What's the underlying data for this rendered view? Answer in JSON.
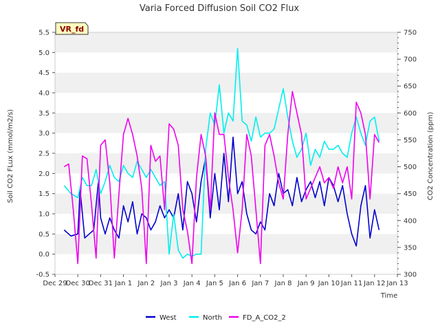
{
  "chart_data": {
    "type": "line",
    "title": "Varia Forced Diffusion Soil CO2 Flux",
    "badge": "VR_fd",
    "xlabel": "Time",
    "ylabel_left": "Soil CO2 FLux (mmol/m2/s)",
    "ylabel_right": "CO2 Concentration (ppm)",
    "xlim": [
      0,
      15
    ],
    "ylim_left": [
      -0.5,
      5.5
    ],
    "ylim_right": [
      300,
      750
    ],
    "x_ticks": [
      "Dec 29",
      "Dec 30",
      "Dec 31",
      "Jan 1",
      "Jan 2",
      "Jan 3",
      "Jan 4",
      "Jan 5",
      "Jan 6",
      "Jan 7",
      "Jan 8",
      "Jan 9",
      "Jan 10",
      "Jan 11",
      "Jan 12",
      "Jan 13"
    ],
    "y_ticks_left": [
      "-0.5",
      "0.0",
      "0.5",
      "1.0",
      "1.5",
      "2.0",
      "2.5",
      "3.0",
      "3.5",
      "4.0",
      "4.5",
      "5.0",
      "5.5"
    ],
    "y_ticks_right": [
      "300",
      "350",
      "400",
      "450",
      "500",
      "550",
      "600",
      "650",
      "700",
      "750"
    ],
    "grid": "horizontal bands",
    "legend_position": "bottom-center",
    "series": [
      {
        "name": "West",
        "axis": "left",
        "color": "#0000cc",
        "x": [
          0.4,
          0.7,
          1.0,
          1.1,
          1.3,
          1.5,
          1.7,
          1.9,
          2.0,
          2.2,
          2.4,
          2.6,
          2.8,
          3.0,
          3.2,
          3.4,
          3.6,
          3.8,
          4.0,
          4.2,
          4.4,
          4.6,
          4.8,
          5.0,
          5.2,
          5.4,
          5.6,
          5.8,
          6.0,
          6.2,
          6.4,
          6.6,
          6.8,
          7.0,
          7.2,
          7.4,
          7.6,
          7.8,
          8.0,
          8.2,
          8.4,
          8.6,
          8.8,
          9.0,
          9.2,
          9.4,
          9.6,
          9.8,
          10.0,
          10.2,
          10.4,
          10.6,
          10.8,
          11.0,
          11.2,
          11.4,
          11.6,
          11.8,
          12.0,
          12.2,
          12.4,
          12.6,
          12.8,
          13.0,
          13.2,
          13.4,
          13.6,
          13.8,
          14.0,
          14.2
        ],
        "values": [
          0.6,
          0.45,
          0.5,
          1.6,
          0.4,
          0.5,
          0.6,
          1.8,
          0.9,
          0.5,
          0.9,
          0.6,
          0.4,
          1.2,
          0.8,
          1.3,
          0.5,
          1.0,
          0.9,
          0.6,
          0.8,
          1.2,
          0.9,
          1.1,
          0.9,
          1.5,
          0.6,
          1.8,
          1.5,
          0.8,
          1.8,
          2.4,
          0.9,
          2.0,
          1.1,
          2.5,
          1.3,
          2.9,
          1.5,
          1.8,
          1.0,
          0.6,
          0.5,
          0.8,
          0.6,
          1.5,
          1.2,
          2.0,
          1.5,
          1.6,
          1.2,
          1.9,
          1.3,
          1.6,
          1.8,
          1.4,
          1.8,
          1.2,
          1.9,
          1.7,
          1.3,
          1.7,
          1.0,
          0.5,
          0.2,
          1.2,
          1.7,
          0.4,
          1.1,
          0.6
        ]
      },
      {
        "name": "North",
        "axis": "left",
        "color": "#00eeee",
        "x": [
          0.4,
          0.7,
          1.0,
          1.2,
          1.4,
          1.6,
          1.8,
          2.0,
          2.2,
          2.4,
          2.6,
          2.8,
          3.0,
          3.2,
          3.4,
          3.6,
          3.8,
          4.0,
          4.2,
          4.4,
          4.6,
          4.8,
          5.0,
          5.2,
          5.4,
          5.6,
          5.8,
          6.0,
          6.2,
          6.4,
          6.6,
          6.8,
          7.0,
          7.2,
          7.4,
          7.6,
          7.8,
          8.0,
          8.2,
          8.4,
          8.6,
          8.8,
          9.0,
          9.2,
          9.4,
          9.6,
          9.8,
          10.0,
          10.2,
          10.4,
          10.6,
          10.8,
          11.0,
          11.2,
          11.4,
          11.6,
          11.8,
          12.0,
          12.2,
          12.4,
          12.6,
          12.8,
          13.0,
          13.2,
          13.4,
          13.6,
          13.8,
          14.0,
          14.2
        ],
        "values": [
          1.7,
          1.5,
          1.4,
          1.9,
          1.7,
          1.7,
          2.1,
          1.5,
          1.8,
          2.2,
          1.9,
          1.8,
          2.2,
          2.0,
          1.9,
          2.3,
          2.1,
          1.9,
          2.1,
          1.9,
          1.7,
          1.8,
          0.0,
          1.0,
          0.1,
          -0.1,
          0.0,
          -0.05,
          0.0,
          0.0,
          2.6,
          3.5,
          3.2,
          4.2,
          3.0,
          3.5,
          3.3,
          5.1,
          3.3,
          3.2,
          2.8,
          3.4,
          2.9,
          3.0,
          3.0,
          3.1,
          3.6,
          4.1,
          3.4,
          2.8,
          2.4,
          2.6,
          3.0,
          2.2,
          2.6,
          2.4,
          2.8,
          2.6,
          2.6,
          2.7,
          2.5,
          2.4,
          3.0,
          3.4,
          3.0,
          2.7,
          3.3,
          3.4,
          2.8
        ]
      },
      {
        "name": "FD_A_CO2_2",
        "axis": "right",
        "color": "#ee00ee",
        "x": [
          0.4,
          0.6,
          0.8,
          1.0,
          1.2,
          1.4,
          1.6,
          1.8,
          2.0,
          2.2,
          2.4,
          2.6,
          2.8,
          3.0,
          3.2,
          3.4,
          3.6,
          3.8,
          4.0,
          4.2,
          4.4,
          4.6,
          4.8,
          5.0,
          5.2,
          5.4,
          5.6,
          5.8,
          6.0,
          6.2,
          6.4,
          6.6,
          6.8,
          7.0,
          7.2,
          7.4,
          7.6,
          7.8,
          8.0,
          8.2,
          8.4,
          8.6,
          8.8,
          9.0,
          9.2,
          9.4,
          9.6,
          9.8,
          10.0,
          10.2,
          10.4,
          10.6,
          10.8,
          11.0,
          11.2,
          11.4,
          11.6,
          11.8,
          12.0,
          12.2,
          12.4,
          12.6,
          12.8,
          13.0,
          13.2,
          13.4,
          13.6,
          13.8,
          14.0,
          14.2
        ],
        "values": [
          500,
          505,
          420,
          320,
          520,
          515,
          430,
          330,
          540,
          550,
          470,
          330,
          450,
          560,
          590,
          560,
          520,
          460,
          320,
          540,
          510,
          520,
          420,
          580,
          570,
          540,
          420,
          380,
          320,
          480,
          560,
          520,
          420,
          600,
          560,
          560,
          480,
          420,
          340,
          420,
          560,
          520,
          420,
          320,
          540,
          560,
          520,
          470,
          440,
          560,
          640,
          600,
          560,
          440,
          460,
          480,
          500,
          470,
          480,
          460,
          500,
          470,
          500,
          440,
          620,
          600,
          560,
          440,
          560,
          545
        ]
      }
    ]
  }
}
